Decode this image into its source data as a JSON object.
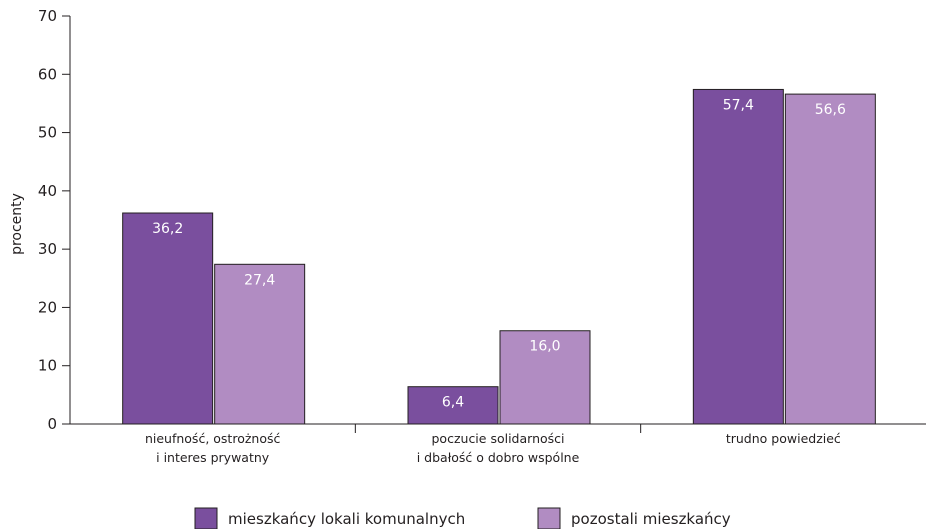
{
  "chart_data": {
    "type": "bar",
    "categories": [
      [
        "nieufność, ostrożność",
        "i interes prywatny"
      ],
      [
        "poczucie solidarności",
        "i dbałość o dobro wspólne"
      ],
      [
        "trudno powiedzieć"
      ]
    ],
    "series": [
      {
        "name": "mieszkańcy lokali komunalnych",
        "values": [
          36.2,
          6.4,
          57.4
        ],
        "labels": [
          "36,2",
          "6,4",
          "57,4"
        ],
        "color": "#7a4f9e"
      },
      {
        "name": "pozostali mieszkańcy",
        "values": [
          27.4,
          16.0,
          56.6
        ],
        "labels": [
          "27,4",
          "16,0",
          "56,6"
        ],
        "color": "#b18cc2"
      }
    ],
    "ylabel": "procenty",
    "ylim": [
      0,
      70
    ],
    "yticks": [
      0,
      10,
      20,
      30,
      40,
      50,
      60,
      70
    ],
    "grid": false,
    "legend": "bottom"
  }
}
